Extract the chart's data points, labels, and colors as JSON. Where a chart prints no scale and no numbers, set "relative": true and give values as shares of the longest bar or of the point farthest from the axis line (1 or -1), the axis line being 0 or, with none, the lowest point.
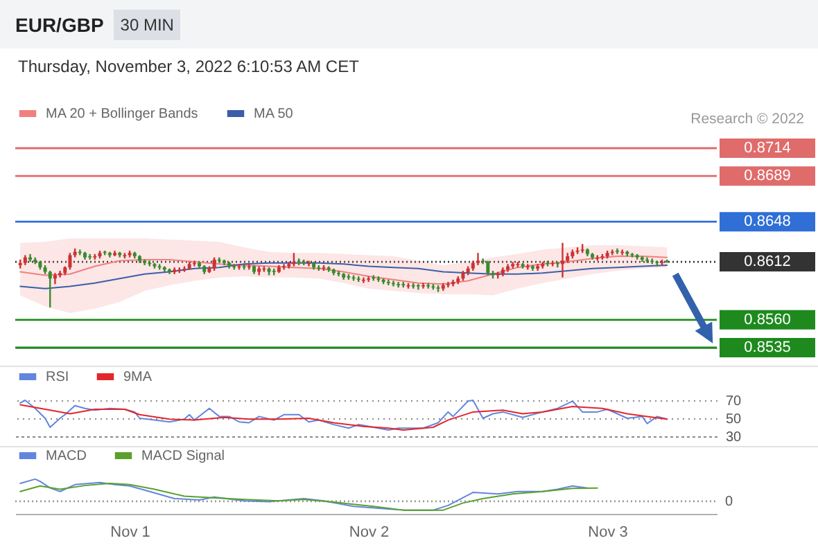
{
  "chart_data": [
    {
      "type": "candlestick",
      "title": "EUR/GBP",
      "subtitle": "Thursday, November 3, 2022 6:10:53 AM CET",
      "annotations": [
        "30 MIN",
        "Research © 2022"
      ],
      "x": [
        "2022-10-31T13:00",
        "2022-10-31T13:30",
        "2022-10-31T14:00",
        "2022-10-31T14:30",
        "2022-10-31T15:00",
        "2022-10-31T15:30",
        "2022-10-31T16:00",
        "2022-10-31T16:30",
        "2022-10-31T17:00",
        "2022-10-31T17:30",
        "2022-10-31T18:00",
        "2022-10-31T18:30",
        "2022-10-31T19:00",
        "2022-10-31T19:30",
        "2022-10-31T20:00",
        "2022-10-31T20:30",
        "2022-10-31T21:00",
        "2022-10-31T21:30",
        "2022-10-31T22:00",
        "2022-10-31T22:30",
        "2022-10-31T23:00",
        "2022-10-31T23:30",
        "2022-11-01T00:00",
        "2022-11-01T00:30",
        "2022-11-01T01:00",
        "2022-11-01T01:30",
        "2022-11-01T02:00",
        "2022-11-01T02:30",
        "2022-11-01T03:00",
        "2022-11-01T03:30",
        "2022-11-01T04:00",
        "2022-11-01T04:30",
        "2022-11-01T05:00",
        "2022-11-01T05:30",
        "2022-11-01T06:00",
        "2022-11-01T06:30",
        "2022-11-01T07:00",
        "2022-11-01T07:30",
        "2022-11-01T08:00",
        "2022-11-01T08:30",
        "2022-11-01T09:00",
        "2022-11-01T09:30",
        "2022-11-01T10:00",
        "2022-11-01T10:30",
        "2022-11-01T11:00",
        "2022-11-01T11:30",
        "2022-11-01T12:00",
        "2022-11-01T12:30",
        "2022-11-01T13:00",
        "2022-11-01T13:30",
        "2022-11-01T14:00",
        "2022-11-01T14:30",
        "2022-11-01T15:00",
        "2022-11-01T15:30",
        "2022-11-01T16:00",
        "2022-11-01T16:30",
        "2022-11-01T17:00",
        "2022-11-01T17:30",
        "2022-11-01T18:00",
        "2022-11-01T18:30",
        "2022-11-01T19:00",
        "2022-11-01T19:30",
        "2022-11-01T20:00",
        "2022-11-01T20:30",
        "2022-11-01T21:00",
        "2022-11-01T21:30",
        "2022-11-01T22:00",
        "2022-11-01T22:30",
        "2022-11-01T23:00",
        "2022-11-01T23:30",
        "2022-11-02T00:00",
        "2022-11-02T00:30",
        "2022-11-02T01:00",
        "2022-11-02T01:30",
        "2022-11-02T02:00",
        "2022-11-02T02:30",
        "2022-11-02T03:00",
        "2022-11-02T03:30",
        "2022-11-02T04:00",
        "2022-11-02T04:30",
        "2022-11-02T05:00",
        "2022-11-02T05:30",
        "2022-11-02T06:00",
        "2022-11-02T06:30",
        "2022-11-02T07:00",
        "2022-11-02T07:30",
        "2022-11-02T08:00",
        "2022-11-02T08:30",
        "2022-11-02T09:00",
        "2022-11-02T09:30",
        "2022-11-02T10:00",
        "2022-11-02T10:30",
        "2022-11-02T11:00",
        "2022-11-02T11:30",
        "2022-11-02T12:00",
        "2022-11-02T12:30",
        "2022-11-02T13:00",
        "2022-11-02T13:30",
        "2022-11-02T14:00",
        "2022-11-02T14:30",
        "2022-11-02T15:00",
        "2022-11-02T15:30",
        "2022-11-02T16:00",
        "2022-11-02T16:30",
        "2022-11-02T17:00",
        "2022-11-02T17:30",
        "2022-11-02T18:00",
        "2022-11-02T18:30",
        "2022-11-02T19:00",
        "2022-11-02T19:30",
        "2022-11-02T20:00",
        "2022-11-02T20:30",
        "2022-11-02T21:00",
        "2022-11-02T21:30",
        "2022-11-02T22:00",
        "2022-11-02T22:30",
        "2022-11-02T23:00",
        "2022-11-02T23:30",
        "2022-11-03T00:00",
        "2022-11-03T00:30",
        "2022-11-03T01:00",
        "2022-11-03T01:30",
        "2022-11-03T02:00",
        "2022-11-03T02:30",
        "2022-11-03T03:00",
        "2022-11-03T03:30",
        "2022-11-03T04:00",
        "2022-11-03T04:30",
        "2022-11-03T05:00",
        "2022-11-03T05:30",
        "2022-11-03T06:00"
      ],
      "ohlc": [
        [
          0.8609,
          0.8614,
          0.8606,
          0.8611
        ],
        [
          0.8611,
          0.8618,
          0.8609,
          0.8616
        ],
        [
          0.8616,
          0.8619,
          0.8612,
          0.8614
        ],
        [
          0.8614,
          0.8616,
          0.861,
          0.8612
        ],
        [
          0.8612,
          0.8613,
          0.8605,
          0.8607
        ],
        [
          0.8607,
          0.8609,
          0.8601,
          0.8603
        ],
        [
          0.8603,
          0.8604,
          0.8571,
          0.8597
        ],
        [
          0.8597,
          0.8602,
          0.8592,
          0.86
        ],
        [
          0.86,
          0.8604,
          0.8598,
          0.8602
        ],
        [
          0.8602,
          0.8608,
          0.86,
          0.8607
        ],
        [
          0.8607,
          0.862,
          0.8605,
          0.8618
        ],
        [
          0.8618,
          0.8624,
          0.8616,
          0.8621
        ],
        [
          0.8621,
          0.8623,
          0.8618,
          0.862
        ],
        [
          0.862,
          0.8621,
          0.8614,
          0.8616
        ],
        [
          0.8617,
          0.8619,
          0.8614,
          0.8616
        ],
        [
          0.8616,
          0.8619,
          0.8614,
          0.8617
        ],
        [
          0.8617,
          0.8622,
          0.8615,
          0.862
        ],
        [
          0.8621,
          0.8622,
          0.8618,
          0.862
        ],
        [
          0.862,
          0.8621,
          0.8616,
          0.8618
        ],
        [
          0.8618,
          0.8622,
          0.8617,
          0.862
        ],
        [
          0.862,
          0.8621,
          0.8616,
          0.8618
        ],
        [
          0.8617,
          0.862,
          0.8615,
          0.8618
        ],
        [
          0.8618,
          0.8622,
          0.8616,
          0.862
        ],
        [
          0.862,
          0.8621,
          0.8615,
          0.8617
        ],
        [
          0.8617,
          0.8618,
          0.8611,
          0.8613
        ],
        [
          0.8613,
          0.8614,
          0.8609,
          0.8611
        ],
        [
          0.8611,
          0.8613,
          0.8608,
          0.861
        ],
        [
          0.861,
          0.8611,
          0.8606,
          0.8608
        ],
        [
          0.8608,
          0.861,
          0.8605,
          0.8607
        ],
        [
          0.8607,
          0.8608,
          0.8603,
          0.8605
        ],
        [
          0.8605,
          0.8606,
          0.8601,
          0.8603
        ],
        [
          0.8603,
          0.8607,
          0.8601,
          0.8605
        ],
        [
          0.8604,
          0.8607,
          0.8602,
          0.8605
        ],
        [
          0.8605,
          0.8608,
          0.8603,
          0.8606
        ],
        [
          0.8606,
          0.8612,
          0.8605,
          0.861
        ],
        [
          0.861,
          0.8613,
          0.8608,
          0.8611
        ],
        [
          0.8611,
          0.8612,
          0.8606,
          0.8608
        ],
        [
          0.8608,
          0.8609,
          0.8601,
          0.8603
        ],
        [
          0.8603,
          0.8608,
          0.8602,
          0.8606
        ],
        [
          0.8606,
          0.8616,
          0.8604,
          0.8614
        ],
        [
          0.8614,
          0.8616,
          0.8611,
          0.8613
        ],
        [
          0.8613,
          0.8614,
          0.8609,
          0.8611
        ],
        [
          0.8611,
          0.8612,
          0.8606,
          0.8608
        ],
        [
          0.8608,
          0.861,
          0.8605,
          0.8607
        ],
        [
          0.8607,
          0.861,
          0.8605,
          0.8608
        ],
        [
          0.8608,
          0.861,
          0.8605,
          0.8607
        ],
        [
          0.8607,
          0.861,
          0.8605,
          0.8608
        ],
        [
          0.8608,
          0.8609,
          0.8601,
          0.8603
        ],
        [
          0.8603,
          0.8608,
          0.86,
          0.8606
        ],
        [
          0.8605,
          0.8608,
          0.8603,
          0.8606
        ],
        [
          0.8606,
          0.8607,
          0.86,
          0.8603
        ],
        [
          0.8604,
          0.8606,
          0.86,
          0.8603
        ],
        [
          0.8603,
          0.8609,
          0.8602,
          0.8607
        ],
        [
          0.8607,
          0.861,
          0.8605,
          0.8608
        ],
        [
          0.8608,
          0.8612,
          0.8606,
          0.861
        ],
        [
          0.861,
          0.862,
          0.8608,
          0.8612
        ],
        [
          0.8613,
          0.8615,
          0.8609,
          0.8612
        ],
        [
          0.8612,
          0.8614,
          0.8609,
          0.8611
        ],
        [
          0.861,
          0.8613,
          0.8608,
          0.8611
        ],
        [
          0.8611,
          0.8612,
          0.8605,
          0.8607
        ],
        [
          0.8607,
          0.8609,
          0.8604,
          0.8606
        ],
        [
          0.8606,
          0.8609,
          0.8604,
          0.8607
        ],
        [
          0.8607,
          0.8608,
          0.8603,
          0.8605
        ],
        [
          0.8605,
          0.8606,
          0.86,
          0.8602
        ],
        [
          0.8602,
          0.8604,
          0.8599,
          0.8601
        ],
        [
          0.8601,
          0.8602,
          0.8596,
          0.8598
        ],
        [
          0.8599,
          0.8601,
          0.8596,
          0.8598
        ],
        [
          0.8598,
          0.86,
          0.8595,
          0.8597
        ],
        [
          0.8597,
          0.8599,
          0.8594,
          0.8596
        ],
        [
          0.8595,
          0.8598,
          0.8593,
          0.8596
        ],
        [
          0.8596,
          0.8599,
          0.8594,
          0.8597
        ],
        [
          0.8598,
          0.86,
          0.8595,
          0.8597
        ],
        [
          0.8597,
          0.8599,
          0.8594,
          0.8596
        ],
        [
          0.8596,
          0.8597,
          0.8592,
          0.8594
        ],
        [
          0.8594,
          0.8596,
          0.8591,
          0.8593
        ],
        [
          0.8593,
          0.8595,
          0.859,
          0.8592
        ],
        [
          0.8592,
          0.8594,
          0.8589,
          0.8591
        ],
        [
          0.8592,
          0.8594,
          0.8589,
          0.8591
        ],
        [
          0.859,
          0.8593,
          0.8588,
          0.8591
        ],
        [
          0.8591,
          0.8593,
          0.8588,
          0.859
        ],
        [
          0.8591,
          0.8592,
          0.8587,
          0.859
        ],
        [
          0.859,
          0.8593,
          0.8588,
          0.8591
        ],
        [
          0.8591,
          0.8593,
          0.8588,
          0.859
        ],
        [
          0.859,
          0.8592,
          0.8587,
          0.8589
        ],
        [
          0.8589,
          0.8591,
          0.8585,
          0.8588
        ],
        [
          0.8588,
          0.8593,
          0.8586,
          0.8591
        ],
        [
          0.8591,
          0.8594,
          0.8589,
          0.8592
        ],
        [
          0.8592,
          0.8596,
          0.859,
          0.8594
        ],
        [
          0.8594,
          0.8599,
          0.8592,
          0.8597
        ],
        [
          0.8597,
          0.8604,
          0.8595,
          0.8602
        ],
        [
          0.8602,
          0.8608,
          0.86,
          0.8606
        ],
        [
          0.8606,
          0.8613,
          0.8604,
          0.8611
        ],
        [
          0.8611,
          0.862,
          0.8609,
          0.8613
        ],
        [
          0.8613,
          0.8615,
          0.861,
          0.8612
        ],
        [
          0.8612,
          0.8613,
          0.86,
          0.8602
        ],
        [
          0.8602,
          0.8604,
          0.8597,
          0.86
        ],
        [
          0.86,
          0.8603,
          0.8597,
          0.8601
        ],
        [
          0.8601,
          0.8607,
          0.8599,
          0.8605
        ],
        [
          0.8605,
          0.861,
          0.8603,
          0.8608
        ],
        [
          0.8608,
          0.8612,
          0.8606,
          0.861
        ],
        [
          0.8609,
          0.8612,
          0.8607,
          0.861
        ],
        [
          0.861,
          0.8611,
          0.8606,
          0.8608
        ],
        [
          0.8607,
          0.861,
          0.8605,
          0.8608
        ],
        [
          0.8608,
          0.8609,
          0.8604,
          0.8606
        ],
        [
          0.8606,
          0.861,
          0.8604,
          0.8608
        ],
        [
          0.8608,
          0.8612,
          0.8606,
          0.861
        ],
        [
          0.8611,
          0.8613,
          0.8608,
          0.861
        ],
        [
          0.861,
          0.8613,
          0.8608,
          0.8611
        ],
        [
          0.8611,
          0.8612,
          0.8607,
          0.861
        ],
        [
          0.861,
          0.8629,
          0.8598,
          0.8613
        ],
        [
          0.8613,
          0.862,
          0.8611,
          0.8617
        ],
        [
          0.8617,
          0.8623,
          0.8615,
          0.8621
        ],
        [
          0.8621,
          0.8625,
          0.8619,
          0.8622
        ],
        [
          0.8622,
          0.8628,
          0.862,
          0.8623
        ],
        [
          0.8623,
          0.8624,
          0.8617,
          0.8619
        ],
        [
          0.8619,
          0.862,
          0.8614,
          0.8616
        ],
        [
          0.8615,
          0.8618,
          0.8613,
          0.8616
        ],
        [
          0.8616,
          0.8619,
          0.8614,
          0.8617
        ],
        [
          0.8617,
          0.8622,
          0.8615,
          0.862
        ],
        [
          0.862,
          0.8623,
          0.8618,
          0.8621
        ],
        [
          0.8622,
          0.8624,
          0.8619,
          0.8621
        ],
        [
          0.862,
          0.8623,
          0.8618,
          0.8621
        ],
        [
          0.8621,
          0.8622,
          0.8617,
          0.8619
        ],
        [
          0.8619,
          0.862,
          0.8616,
          0.8618
        ],
        [
          0.8618,
          0.8619,
          0.8614,
          0.8616
        ],
        [
          0.8616,
          0.8617,
          0.8612,
          0.8614
        ],
        [
          0.8614,
          0.8616,
          0.8611,
          0.8613
        ],
        [
          0.8613,
          0.8615,
          0.861,
          0.8612
        ],
        [
          0.8612,
          0.8613,
          0.8608,
          0.8611
        ],
        [
          0.8611,
          0.8614,
          0.8609,
          0.8612
        ],
        [
          0.8613,
          0.8614,
          0.8611,
          0.8612
        ]
      ],
      "colors": [
        "#cc3333",
        "#cc3333",
        "#3a8a2e",
        "#3a8a2e",
        "#3a8a2e",
        "#3a8a2e",
        "#3a8a2e",
        "#cc3333",
        "#cc3333",
        "#cc3333",
        "#cc3333",
        "#cc3333",
        "#3a8a2e",
        "#3a8a2e",
        "#3a8a2e",
        "#cc3333",
        "#cc3333",
        "#3a8a2e",
        "#3a8a2e",
        "#cc3333",
        "#3a8a2e",
        "#cc3333",
        "#cc3333",
        "#3a8a2e",
        "#3a8a2e",
        "#3a8a2e",
        "#3a8a2e",
        "#3a8a2e",
        "#3a8a2e",
        "#3a8a2e",
        "#3a8a2e",
        "#cc3333",
        "#cc3333",
        "#cc3333",
        "#cc3333",
        "#cc3333",
        "#3a8a2e",
        "#3a8a2e",
        "#cc3333",
        "#cc3333",
        "#3a8a2e",
        "#3a8a2e",
        "#3a8a2e",
        "#3a8a2e",
        "#cc3333",
        "#3a8a2e",
        "#cc3333",
        "#3a8a2e",
        "#cc3333",
        "#cc3333",
        "#3a8a2e",
        "#3a8a2e",
        "#cc3333",
        "#cc3333",
        "#cc3333",
        "#cc3333",
        "#3a8a2e",
        "#3a8a2e",
        "#cc3333",
        "#3a8a2e",
        "#3a8a2e",
        "#cc3333",
        "#3a8a2e",
        "#3a8a2e",
        "#3a8a2e",
        "#3a8a2e",
        "#3a8a2e",
        "#3a8a2e",
        "#3a8a2e",
        "#cc3333",
        "#cc3333",
        "#3a8a2e",
        "#3a8a2e",
        "#3a8a2e",
        "#3a8a2e",
        "#3a8a2e",
        "#3a8a2e",
        "#3a8a2e",
        "#cc3333",
        "#3a8a2e",
        "#3a8a2e",
        "#cc3333",
        "#3a8a2e",
        "#3a8a2e",
        "#3a8a2e",
        "#cc3333",
        "#cc3333",
        "#cc3333",
        "#cc3333",
        "#cc3333",
        "#cc3333",
        "#cc3333",
        "#cc3333",
        "#3a8a2e",
        "#3a8a2e",
        "#3a8a2e",
        "#cc3333",
        "#cc3333",
        "#cc3333",
        "#cc3333",
        "#cc3333",
        "#3a8a2e",
        "#cc3333",
        "#3a8a2e",
        "#cc3333",
        "#cc3333",
        "#3a8a2e",
        "#cc3333",
        "#3a8a2e",
        "#cc3333",
        "#cc3333",
        "#cc3333",
        "#cc3333",
        "#cc3333",
        "#3a8a2e",
        "#3a8a2e",
        "#cc3333",
        "#cc3333",
        "#cc3333",
        "#cc3333",
        "#3a8a2e",
        "#cc3333",
        "#3a8a2e",
        "#3a8a2e",
        "#3a8a2e",
        "#3a8a2e",
        "#3a8a2e",
        "#3a8a2e",
        "#3a8a2e",
        "#cc3333",
        "#3a8a2e"
      ],
      "series": [
        {
          "name": "MA 20 + Bollinger Bands",
          "type": "line",
          "color": "#f08080",
          "x": [
            "2022-10-31T13:00",
            "2022-10-31T15:30",
            "2022-10-31T18:00",
            "2022-10-31T20:30",
            "2022-10-31T23:00",
            "2022-11-01T01:30",
            "2022-11-01T04:00",
            "2022-11-01T06:30",
            "2022-11-01T09:00",
            "2022-11-01T11:30",
            "2022-11-01T14:00",
            "2022-11-01T16:30",
            "2022-11-01T19:00",
            "2022-11-01T21:30",
            "2022-11-02T00:00",
            "2022-11-02T02:30",
            "2022-11-02T05:00",
            "2022-11-02T07:30",
            "2022-11-02T10:00",
            "2022-11-02T12:30",
            "2022-11-02T15:00",
            "2022-11-02T17:30",
            "2022-11-02T20:00",
            "2022-11-02T22:30",
            "2022-11-03T01:00",
            "2022-11-03T03:30",
            "2022-11-03T06:00"
          ],
          "values": [
            0.8603,
            0.86,
            0.8601,
            0.8608,
            0.8613,
            0.8614,
            0.8614,
            0.8612,
            0.861,
            0.8609,
            0.8608,
            0.8607,
            0.8606,
            0.8603,
            0.8599,
            0.8596,
            0.8593,
            0.8592,
            0.8595,
            0.8601,
            0.8607,
            0.861,
            0.8612,
            0.8615,
            0.8617,
            0.8617,
            0.8616
          ],
          "upper": [
            0.8629,
            0.863,
            0.8633,
            0.8633,
            0.8633,
            0.8633,
            0.8632,
            0.8631,
            0.863,
            0.8625,
            0.8621,
            0.862,
            0.862,
            0.8619,
            0.8618,
            0.8617,
            0.8613,
            0.8609,
            0.8612,
            0.8616,
            0.8619,
            0.8623,
            0.8625,
            0.8627,
            0.8627,
            0.8626,
            0.8625
          ],
          "lower": [
            0.8582,
            0.8572,
            0.8566,
            0.857,
            0.8576,
            0.8586,
            0.8591,
            0.8595,
            0.8598,
            0.8599,
            0.8598,
            0.8598,
            0.8597,
            0.8593,
            0.8588,
            0.8586,
            0.8584,
            0.8583,
            0.8583,
            0.8582,
            0.8588,
            0.8593,
            0.8597,
            0.8601,
            0.8604,
            0.8606,
            0.8607
          ]
        },
        {
          "name": "MA 50",
          "type": "line",
          "color": "#3c5ea8",
          "x": [
            "2022-10-31T13:00",
            "2022-10-31T15:30",
            "2022-10-31T18:00",
            "2022-10-31T20:30",
            "2022-10-31T23:00",
            "2022-11-01T01:30",
            "2022-11-01T04:00",
            "2022-11-01T06:30",
            "2022-11-01T09:00",
            "2022-11-01T11:30",
            "2022-11-01T14:00",
            "2022-11-01T16:30",
            "2022-11-01T19:00",
            "2022-11-01T21:30",
            "2022-11-02T00:00",
            "2022-11-02T02:30",
            "2022-11-02T05:00",
            "2022-11-02T07:30",
            "2022-11-02T10:00",
            "2022-11-02T12:30",
            "2022-11-02T15:00",
            "2022-11-02T17:30",
            "2022-11-02T20:00",
            "2022-11-02T22:30",
            "2022-11-03T01:00",
            "2022-11-03T03:30",
            "2022-11-03T06:00"
          ],
          "values": [
            0.859,
            0.8588,
            0.859,
            0.8593,
            0.8597,
            0.8601,
            0.8603,
            0.8606,
            0.8607,
            0.861,
            0.8611,
            0.8611,
            0.8611,
            0.861,
            0.8608,
            0.8607,
            0.8606,
            0.8603,
            0.8602,
            0.8601,
            0.8601,
            0.8602,
            0.8604,
            0.8606,
            0.8607,
            0.8608,
            0.8609
          ]
        }
      ],
      "xlim": [
        "2022-10-31T12:30",
        "2022-11-03T11:00"
      ],
      "ylim": [
        0.8535,
        0.8714
      ],
      "yticks": [
        0.8535,
        {
          "value": 0.856,
          "label": "0.8560"
        },
        0.8612,
        0.8648,
        0.8689,
        0.8714
      ],
      "ref_lines": [
        {
          "axis": "y",
          "value": 0.8714,
          "color": "#e06b6b"
        },
        {
          "axis": "y",
          "value": 0.8689,
          "color": "#e06b6b"
        },
        {
          "axis": "y",
          "value": 0.8648,
          "color": "#2f6fd6"
        },
        {
          "axis": "y",
          "value": 0.8612,
          "color": "#333333",
          "line_style": "dotted"
        },
        {
          "axis": "y",
          "value": 0.856,
          "color": "#1e8a1e"
        },
        {
          "axis": "y",
          "value": 0.8535,
          "color": "#1e8a1e"
        }
      ],
      "legend": "top left",
      "tick_labels": "y"
    },
    {
      "type": "line",
      "series": [
        {
          "name": "RSI",
          "color": "#6285de",
          "x": [
            "2022-10-31T13:00",
            "2022-10-31T13:30",
            "2022-10-31T14:30",
            "2022-10-31T15:30",
            "2022-10-31T16:00",
            "2022-10-31T17:00",
            "2022-10-31T17:30",
            "2022-10-31T18:30",
            "2022-10-31T19:30",
            "2022-10-31T20:30",
            "2022-10-31T22:00",
            "2022-10-31T23:30",
            "2022-11-01T00:30",
            "2022-11-01T01:00",
            "2022-11-01T02:30",
            "2022-11-01T04:00",
            "2022-11-01T05:30",
            "2022-11-01T06:00",
            "2022-11-01T06:30",
            "2022-11-01T08:00",
            "2022-11-01T09:00",
            "2022-11-01T10:00",
            "2022-11-01T11:00",
            "2022-11-01T12:00",
            "2022-11-01T13:00",
            "2022-11-01T14:30",
            "2022-11-01T15:30",
            "2022-11-01T17:00",
            "2022-11-01T18:00",
            "2022-11-01T19:00",
            "2022-11-01T20:30",
            "2022-11-01T22:00",
            "2022-11-01T23:00",
            "2022-11-02T00:30",
            "2022-11-02T02:00",
            "2022-11-02T03:00",
            "2022-11-02T05:30",
            "2022-11-02T07:00",
            "2022-11-02T08:00",
            "2022-11-02T08:30",
            "2022-11-02T10:00",
            "2022-11-02T10:30",
            "2022-11-02T11:30",
            "2022-11-02T12:30",
            "2022-11-02T13:30",
            "2022-11-02T15:30",
            "2022-11-02T17:30",
            "2022-11-02T19:00",
            "2022-11-02T20:30",
            "2022-11-02T21:30",
            "2022-11-02T23:00",
            "2022-11-03T00:00",
            "2022-11-03T02:00",
            "2022-11-03T03:30",
            "2022-11-03T04:00",
            "2022-11-03T05:00",
            "2022-11-03T06:00"
          ],
          "values": [
            67,
            70,
            61,
            50,
            40,
            50,
            54,
            64,
            61,
            59,
            61,
            60,
            57,
            50,
            48,
            46,
            49,
            54,
            48,
            61,
            52,
            52,
            46,
            45,
            52,
            48,
            54,
            54,
            46,
            48,
            43,
            39,
            43,
            40,
            37,
            39,
            39,
            45,
            57,
            52,
            69,
            70,
            50,
            55,
            57,
            51,
            57,
            61,
            69,
            57,
            57,
            60,
            50,
            52,
            44,
            52,
            49
          ]
        },
        {
          "name": "9MA",
          "color": "#e3262b",
          "x": [
            "2022-10-31T13:00",
            "2022-10-31T16:00",
            "2022-10-31T18:00",
            "2022-10-31T20:30",
            "2022-10-31T23:30",
            "2022-11-01T01:00",
            "2022-11-01T04:00",
            "2022-11-01T06:30",
            "2022-11-01T09:30",
            "2022-11-01T12:00",
            "2022-11-01T15:00",
            "2022-11-01T18:00",
            "2022-11-01T20:30",
            "2022-11-01T23:30",
            "2022-11-02T02:00",
            "2022-11-02T03:30",
            "2022-11-02T06:30",
            "2022-11-02T08:00",
            "2022-11-02T10:30",
            "2022-11-02T13:30",
            "2022-11-02T15:30",
            "2022-11-02T17:30",
            "2022-11-02T20:30",
            "2022-11-02T23:30",
            "2022-11-03T02:00",
            "2022-11-03T04:00",
            "2022-11-03T06:00"
          ],
          "values": [
            65,
            59,
            55,
            60,
            60,
            54,
            49,
            48,
            51,
            49,
            49,
            50,
            45,
            41,
            39,
            37,
            40,
            48,
            57,
            59,
            55,
            57,
            63,
            61,
            55,
            52,
            49
          ]
        }
      ],
      "xlim": [
        "2022-10-31T12:30",
        "2022-11-03T11:00"
      ],
      "ylim": [
        30,
        70
      ],
      "yticks": [
        30,
        50,
        70
      ],
      "grid": "y",
      "legend": "top left",
      "tick_labels": "y"
    },
    {
      "type": "line",
      "relative": true,
      "series": [
        {
          "name": "MACD",
          "color": "#6285de",
          "x": [
            "2022-10-31T13:00",
            "2022-10-31T14:30",
            "2022-10-31T15:00",
            "2022-10-31T16:00",
            "2022-10-31T17:00",
            "2022-10-31T18:30",
            "2022-10-31T21:00",
            "2022-10-31T22:30",
            "2022-11-01T00:00",
            "2022-11-01T02:00",
            "2022-11-01T04:30",
            "2022-11-01T07:00",
            "2022-11-01T08:30",
            "2022-11-01T11:30",
            "2022-11-01T14:00",
            "2022-11-01T17:30",
            "2022-11-01T19:30",
            "2022-11-01T22:30",
            "2022-11-02T02:00",
            "2022-11-02T03:30",
            "2022-11-02T06:30",
            "2022-11-02T08:00",
            "2022-11-02T10:30",
            "2022-11-02T13:00",
            "2022-11-02T15:00",
            "2022-11-02T17:30",
            "2022-11-02T19:00",
            "2022-11-02T20:30",
            "2022-11-02T22:00"
          ],
          "values": [
            0.81,
            1.0,
            0.9,
            0.6,
            0.44,
            0.75,
            0.85,
            0.75,
            0.69,
            0.44,
            0.12,
            0.06,
            0.19,
            0.02,
            -0.02,
            0.12,
            0.02,
            -0.23,
            -0.35,
            -0.4,
            -0.4,
            -0.19,
            0.4,
            0.33,
            0.44,
            0.44,
            0.54,
            0.69,
            0.6
          ]
        },
        {
          "name": "MACD Signal",
          "color": "#5aa02c",
          "x": [
            "2022-10-31T13:00",
            "2022-10-31T15:00",
            "2022-10-31T17:00",
            "2022-10-31T19:30",
            "2022-10-31T22:00",
            "2022-11-01T00:00",
            "2022-11-01T02:30",
            "2022-11-01T05:30",
            "2022-11-01T08:00",
            "2022-11-01T11:30",
            "2022-11-01T15:00",
            "2022-11-01T17:30",
            "2022-11-01T20:30",
            "2022-11-02T00:30",
            "2022-11-02T03:30",
            "2022-11-02T07:30",
            "2022-11-02T09:30",
            "2022-11-02T11:30",
            "2022-11-02T14:30",
            "2022-11-02T17:30",
            "2022-11-02T20:30",
            "2022-11-02T23:00"
          ],
          "values": [
            0.44,
            0.69,
            0.54,
            0.71,
            0.81,
            0.75,
            0.54,
            0.23,
            0.17,
            0.08,
            0.02,
            0.08,
            -0.04,
            -0.23,
            -0.4,
            -0.4,
            -0.08,
            0.12,
            0.33,
            0.44,
            0.58,
            0.6
          ]
        }
      ],
      "xlim": [
        "2022-10-31T12:30",
        "2022-11-03T11:00"
      ],
      "xticks": [
        {
          "value": "2022-11-01T00:00",
          "label": "Nov 1"
        },
        {
          "value": "2022-11-02T00:00",
          "label": "Nov 2"
        },
        {
          "value": "2022-11-03T00:00",
          "label": "Nov 3"
        }
      ],
      "ref_lines": [
        {
          "axis": "y",
          "value": 0,
          "label": "0",
          "line_style": "dotted"
        }
      ],
      "legend": "top left",
      "tick_labels": "x"
    }
  ]
}
